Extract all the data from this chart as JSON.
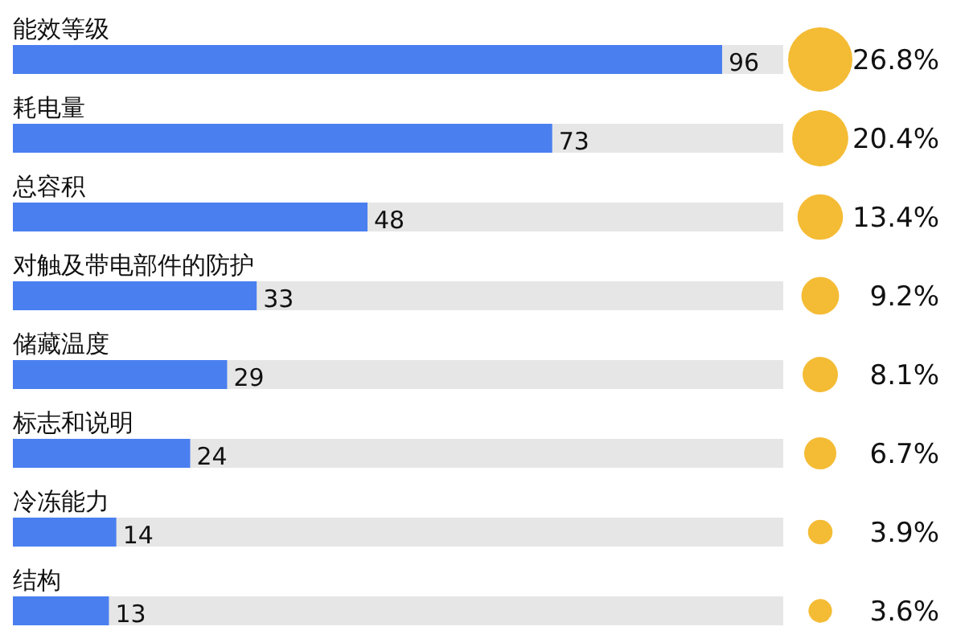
{
  "chart_data": [
    {
      "type": "bar",
      "orientation": "horizontal",
      "categories": [
        "能效等级",
        "耗电量",
        "总容积",
        "对触及带电部件的防护",
        "储藏温度",
        "标志和说明",
        "冷冻能力",
        "结构"
      ],
      "values": [
        96,
        73,
        48,
        33,
        29,
        24,
        14,
        13
      ],
      "color": "#4a7ff0",
      "data_labels": true
    },
    {
      "type": "other",
      "categories": [
        null,
        null,
        null,
        null,
        null,
        null,
        null,
        null
      ],
      "values": [
        26.8,
        20.4,
        13.4,
        9.2,
        8.1,
        6.7,
        3.9,
        3.6
      ],
      "color": "#f4bc35",
      "value_labels": [
        "26.8%",
        "20.4%",
        "13.4%",
        "9.2%",
        "8.1%",
        "6.7%",
        "3.9%",
        "3.6%"
      ]
    }
  ]
}
